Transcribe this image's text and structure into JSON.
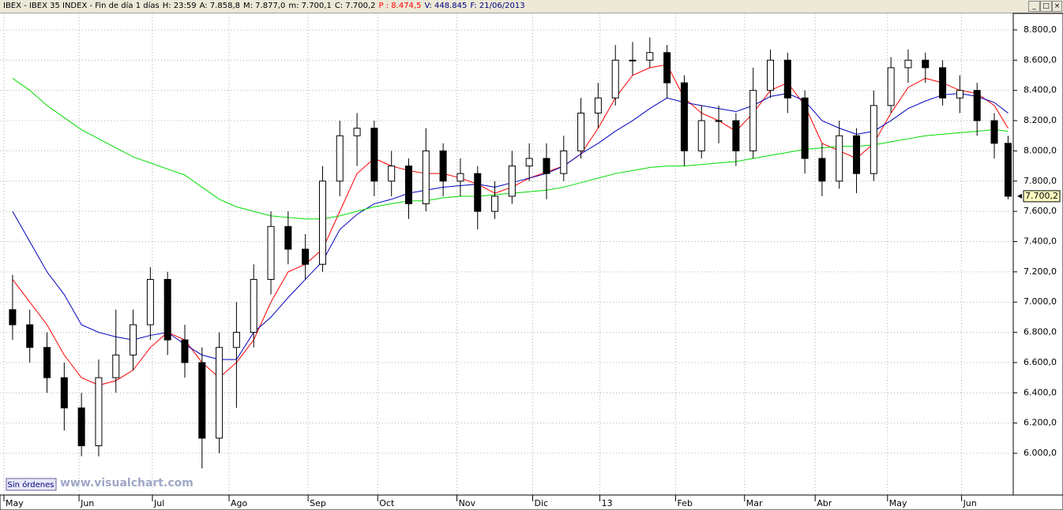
{
  "header": {
    "items": [
      {
        "text": "IBEX - IBEX 35 INDEX - Fin de día 1 días",
        "color": "#000000"
      },
      {
        "text": "H: 23:59",
        "color": "#000000"
      },
      {
        "text": "A: 7.858,8",
        "color": "#000000"
      },
      {
        "text": "M: 7.877,0",
        "color": "#000000"
      },
      {
        "text": "m: 7.700,1",
        "color": "#000000"
      },
      {
        "text": "C: 7.700,2",
        "color": "#000000"
      },
      {
        "text": "P : 8.474,5",
        "color": "#ff0000"
      },
      {
        "text": "V: 448.845",
        "color": "#000080"
      },
      {
        "text": "F: 21/06/2013",
        "color": "#000080"
      }
    ]
  },
  "button": "Sin órdenes",
  "watermark": "www.visualchart.com",
  "chart_data": {
    "type": "candlestick",
    "x": [
      0.5,
      1.5,
      2.5,
      3.5,
      4.5,
      5.5,
      6.5,
      7.5,
      8.5,
      9.5,
      10.5,
      11.5,
      12.5,
      13.5,
      14.5,
      15.5,
      16.5,
      17.5,
      18.5,
      19.5,
      20.5,
      21.5,
      22.5,
      23.5,
      24.5,
      25.5,
      26.5,
      27.5,
      28.5,
      29.5,
      30.5,
      31.5,
      32.5,
      33.5,
      34.5,
      35.5,
      36.5,
      37.5,
      38.5,
      39.5,
      40.5,
      41.5,
      42.5,
      43.5,
      44.5,
      45.5,
      46.5,
      47.5,
      48.5,
      49.5,
      50.5,
      51.5,
      52.5,
      53.5,
      54.5,
      55.5,
      56.5,
      57.5,
      58.3
    ],
    "open": [
      6950,
      6850,
      6700,
      6500,
      6300,
      6050,
      6500,
      6650,
      6850,
      7150,
      6750,
      6600,
      6100,
      6700,
      6800,
      7150,
      7500,
      7350,
      7250,
      7800,
      8100,
      8150,
      7800,
      7900,
      7650,
      8000,
      7800,
      7850,
      7600,
      7700,
      7900,
      7950,
      7850,
      8000,
      8250,
      8350,
      8600,
      8600,
      8650,
      8450,
      8000,
      8200,
      8200,
      8000,
      8400,
      8600,
      8350,
      7950,
      7800,
      8100,
      7850,
      8300,
      8550,
      8600,
      8550,
      8350,
      8400,
      8200,
      8050
    ],
    "high": [
      7180,
      6950,
      6800,
      6600,
      6400,
      6620,
      6950,
      6950,
      7230,
      7200,
      6850,
      6700,
      6800,
      7000,
      7250,
      7600,
      7600,
      7450,
      7900,
      8200,
      8250,
      8200,
      8000,
      7950,
      8150,
      8050,
      7950,
      7900,
      7800,
      8000,
      8050,
      8050,
      8100,
      8350,
      8450,
      8700,
      8720,
      8750,
      8700,
      8500,
      8300,
      8300,
      8250,
      8550,
      8670,
      8650,
      8400,
      8050,
      8200,
      8150,
      8400,
      8620,
      8670,
      8650,
      8600,
      8500,
      8450,
      8250,
      8100
    ],
    "low": [
      6750,
      6600,
      6400,
      6150,
      5980,
      5980,
      6400,
      6550,
      6750,
      6650,
      6500,
      5900,
      6000,
      6300,
      6700,
      7050,
      7250,
      7150,
      7200,
      7700,
      7900,
      7700,
      7700,
      7550,
      7600,
      7700,
      7700,
      7480,
      7550,
      7650,
      7800,
      7680,
      7800,
      7950,
      8150,
      8300,
      8500,
      8550,
      8350,
      7900,
      7950,
      8050,
      7900,
      7950,
      8350,
      8250,
      7850,
      7700,
      7750,
      7720,
      7800,
      8250,
      8450,
      8450,
      8300,
      8250,
      8100,
      7950,
      7680
    ],
    "close": [
      6850,
      6700,
      6500,
      6300,
      6050,
      6500,
      6650,
      6850,
      7150,
      6750,
      6600,
      6100,
      6700,
      6800,
      7150,
      7500,
      7350,
      7250,
      7800,
      8100,
      8150,
      7800,
      7900,
      7650,
      8000,
      7800,
      7850,
      7600,
      7700,
      7900,
      7950,
      7850,
      8000,
      8250,
      8350,
      8600,
      8600,
      8650,
      8450,
      8000,
      8200,
      8200,
      8000,
      8400,
      8600,
      8350,
      7950,
      7800,
      8100,
      7850,
      8300,
      8550,
      8600,
      8550,
      8350,
      8400,
      8200,
      8050,
      7700
    ],
    "up_color": "#ffffff",
    "down_color": "#000000",
    "overlays": [
      {
        "color": "#ff0000",
        "values": [
          7150,
          7000,
          6850,
          6650,
          6500,
          6450,
          6480,
          6550,
          6700,
          6800,
          6750,
          6600,
          6500,
          6600,
          6750,
          7000,
          7200,
          7250,
          7350,
          7600,
          7850,
          7950,
          7900,
          7870,
          7850,
          7850,
          7820,
          7780,
          7720,
          7760,
          7820,
          7860,
          7900,
          7980,
          8150,
          8350,
          8500,
          8550,
          8570,
          8350,
          8250,
          8200,
          8130,
          8250,
          8400,
          8450,
          8300,
          8050,
          8000,
          7950,
          8050,
          8250,
          8420,
          8480,
          8450,
          8400,
          8380,
          8300,
          8150
        ]
      },
      {
        "color": "#0000c0",
        "values": [
          7600,
          7400,
          7200,
          7050,
          6850,
          6800,
          6770,
          6750,
          6780,
          6800,
          6720,
          6650,
          6620,
          6620,
          6800,
          6900,
          7030,
          7150,
          7270,
          7480,
          7580,
          7650,
          7680,
          7720,
          7740,
          7760,
          7770,
          7780,
          7760,
          7790,
          7820,
          7850,
          7900,
          7980,
          8050,
          8130,
          8200,
          8280,
          8350,
          8320,
          8300,
          8280,
          8260,
          8300,
          8360,
          8380,
          8330,
          8200,
          8150,
          8110,
          8130,
          8200,
          8280,
          8330,
          8370,
          8380,
          8360,
          8320,
          8250
        ]
      },
      {
        "color": "#00dd00",
        "values": [
          8480,
          8400,
          8300,
          8220,
          8140,
          8080,
          8020,
          7960,
          7920,
          7880,
          7840,
          7760,
          7680,
          7630,
          7600,
          7570,
          7560,
          7550,
          7550,
          7570,
          7600,
          7630,
          7650,
          7670,
          7670,
          7690,
          7700,
          7700,
          7710,
          7720,
          7730,
          7740,
          7760,
          7790,
          7820,
          7850,
          7870,
          7890,
          7900,
          7900,
          7910,
          7920,
          7930,
          7950,
          7970,
          7990,
          8010,
          8020,
          8030,
          8030,
          8040,
          8060,
          8080,
          8100,
          8110,
          8120,
          8130,
          8140,
          8130
        ]
      }
    ],
    "xlim": [
      0,
      58.6
    ],
    "xticks": [
      {
        "value": 0,
        "label": "May"
      },
      {
        "value": 4.36,
        "label": "Jun"
      },
      {
        "value": 8.62,
        "label": "Jul"
      },
      {
        "value": 13.07,
        "label": "Ago"
      },
      {
        "value": 17.66,
        "label": "Sep"
      },
      {
        "value": 21.7,
        "label": "Oct"
      },
      {
        "value": 26.3,
        "label": "Nov"
      },
      {
        "value": 30.7,
        "label": "Dic"
      },
      {
        "value": 34.6,
        "label": "13"
      },
      {
        "value": 39.0,
        "label": "Feb"
      },
      {
        "value": 43.0,
        "label": "Mar"
      },
      {
        "value": 47.1,
        "label": "Abr"
      },
      {
        "value": 51.3,
        "label": "May"
      },
      {
        "value": 55.6,
        "label": "Jun"
      }
    ],
    "ylim": [
      5724,
      8904
    ],
    "yticks": [
      {
        "value": 6000,
        "label": "6.000,0"
      },
      {
        "value": 6200,
        "label": "6.200,0"
      },
      {
        "value": 6400,
        "label": "6.400,0"
      },
      {
        "value": 6600,
        "label": "6.600,0"
      },
      {
        "value": 6800,
        "label": "6.800,0"
      },
      {
        "value": 7000,
        "label": "7.000,0"
      },
      {
        "value": 7200,
        "label": "7.200,0"
      },
      {
        "value": 7400,
        "label": "7.400,0"
      },
      {
        "value": 7600,
        "label": "7.600,0"
      },
      {
        "value": 7800,
        "label": "7.800,0"
      },
      {
        "value": 8000,
        "label": "8.000,0"
      },
      {
        "value": 8200,
        "label": "8.200,0"
      },
      {
        "value": 8400,
        "label": "8.400,0"
      },
      {
        "value": 8600,
        "label": "8.600,0"
      },
      {
        "value": 8800,
        "label": "8.800,0"
      }
    ],
    "grid": true,
    "last_price": {
      "value": 7700.2,
      "label": "7.700,2"
    }
  }
}
